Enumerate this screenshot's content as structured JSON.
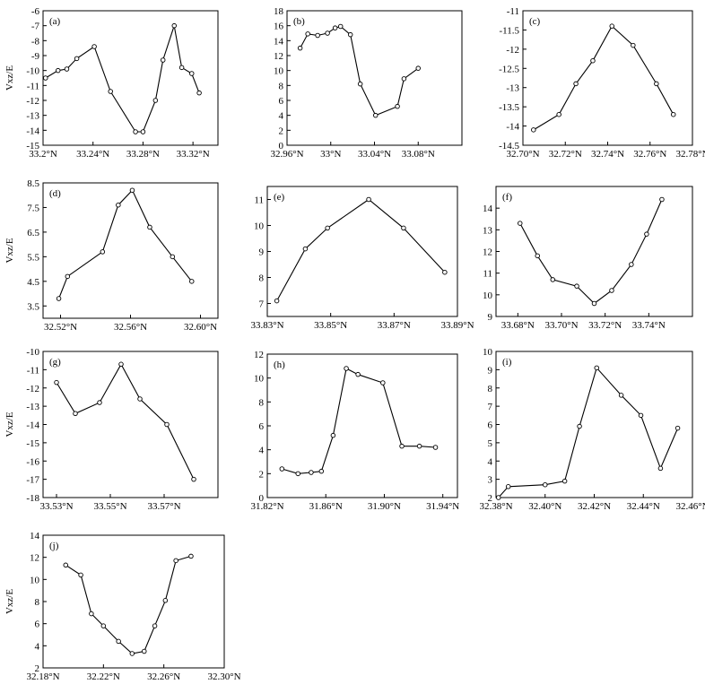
{
  "chart_data": [
    {
      "type": "line",
      "panel_label": "(a)",
      "ylabel": "Vxz/E",
      "xlim": [
        33.2,
        33.34
      ],
      "ylim": [
        -15,
        -6
      ],
      "xticks": [
        33.2,
        33.24,
        33.28,
        33.32
      ],
      "xtick_labels": [
        "33.2°N",
        "33.24°N",
        "33.28°N",
        "33.32°N"
      ],
      "yticks": [
        -15,
        -14,
        -13,
        -12,
        -11,
        -10,
        -9,
        -8,
        -7,
        -6
      ],
      "ytick_labels": [
        "-15",
        "-14",
        "-13",
        "-12",
        "-11",
        "-10",
        "-9",
        "-8",
        "-7",
        "-6"
      ],
      "x": [
        33.202,
        33.212,
        33.219,
        33.227,
        33.241,
        33.254,
        33.274,
        33.28,
        33.29,
        33.296,
        33.305,
        33.311,
        33.319,
        33.325
      ],
      "y": [
        -10.5,
        -10.0,
        -9.9,
        -9.2,
        -8.4,
        -11.4,
        -14.1,
        -14.1,
        -12.0,
        -9.3,
        -7.0,
        -9.8,
        -10.2,
        -11.5
      ]
    },
    {
      "type": "line",
      "panel_label": "(b)",
      "ylabel": "",
      "xlim": [
        32.96,
        33.12
      ],
      "ylim": [
        0,
        18
      ],
      "xticks": [
        32.96,
        33.0,
        33.04,
        33.08
      ],
      "xtick_labels": [
        "32.96°N",
        "33°N",
        "33.04°N",
        "33.08°N"
      ],
      "yticks": [
        0,
        2,
        4,
        6,
        8,
        10,
        12,
        14,
        16,
        18
      ],
      "ytick_labels": [
        "0",
        "2",
        "4",
        "6",
        "8",
        "10",
        "12",
        "14",
        "16",
        "18"
      ],
      "x": [
        32.972,
        32.979,
        32.988,
        32.997,
        33.004,
        33.009,
        33.018,
        33.027,
        33.041,
        33.061,
        33.067,
        33.08
      ],
      "y": [
        13.0,
        14.9,
        14.7,
        15.0,
        15.7,
        15.9,
        14.8,
        8.2,
        4.0,
        5.2,
        8.9,
        10.3
      ]
    },
    {
      "type": "line",
      "panel_label": "(c)",
      "ylabel": "",
      "xlim": [
        32.7,
        32.78
      ],
      "ylim": [
        -14.5,
        -11
      ],
      "xticks": [
        32.7,
        32.72,
        32.74,
        32.76,
        32.78
      ],
      "xtick_labels": [
        "32.70°N",
        "32.72°N",
        "32.74°N",
        "32.76°N",
        "32.78°N"
      ],
      "yticks": [
        -14.5,
        -14,
        -13.5,
        -13,
        -12.5,
        -12,
        -11.5,
        -11
      ],
      "ytick_labels": [
        "-14.5",
        "-14",
        "-13.5",
        "-13",
        "-12.5",
        "-12",
        "-11.5",
        "-11"
      ],
      "x": [
        32.705,
        32.717,
        32.725,
        32.733,
        32.742,
        32.752,
        32.763,
        32.771
      ],
      "y": [
        -14.1,
        -13.7,
        -12.9,
        -12.3,
        -11.4,
        -11.9,
        -12.9,
        -13.7
      ]
    },
    {
      "type": "line",
      "panel_label": "(d)",
      "ylabel": "Vxz/E",
      "xlim": [
        32.51,
        32.61
      ],
      "ylim": [
        3.0,
        8.5
      ],
      "xticks": [
        32.52,
        32.56,
        32.6
      ],
      "xtick_labels": [
        "32.52°N",
        "32.56°N",
        "32.60°N"
      ],
      "yticks": [
        3.5,
        4.5,
        5.5,
        6.5,
        7.5,
        8.5
      ],
      "ytick_labels": [
        "3.5",
        "4.5",
        "5.5",
        "6.5",
        "7.5",
        "8.5"
      ],
      "x": [
        32.519,
        32.524,
        32.544,
        32.553,
        32.561,
        32.571,
        32.584,
        32.595
      ],
      "y": [
        3.8,
        4.7,
        5.7,
        7.6,
        8.2,
        6.7,
        5.5,
        4.5
      ]
    },
    {
      "type": "line",
      "panel_label": "(e)",
      "ylabel": "",
      "xlim": [
        33.83,
        33.89
      ],
      "ylim": [
        6.5,
        11.5
      ],
      "xticks": [
        33.83,
        33.85,
        33.87,
        33.89
      ],
      "xtick_labels": [
        "33.83°N",
        "33.85°N",
        "33.87°N",
        "33.89°N"
      ],
      "yticks": [
        7,
        8,
        9,
        10,
        11
      ],
      "ytick_labels": [
        "7",
        "8",
        "9",
        "10",
        "11"
      ],
      "x": [
        33.833,
        33.842,
        33.849,
        33.862,
        33.873,
        33.886
      ],
      "y": [
        7.1,
        9.1,
        9.9,
        11.0,
        9.9,
        8.2
      ]
    },
    {
      "type": "line",
      "panel_label": "(f)",
      "ylabel": "",
      "xlim": [
        33.67,
        33.76
      ],
      "ylim": [
        9,
        15
      ],
      "xticks": [
        33.68,
        33.7,
        33.72,
        33.74
      ],
      "xtick_labels": [
        "33.68°N",
        "33.70°N",
        "33.72°N",
        "33.74°N"
      ],
      "yticks": [
        9,
        10,
        11,
        12,
        13,
        14
      ],
      "ytick_labels": [
        "9",
        "10",
        "11",
        "12",
        "13",
        "14"
      ],
      "x": [
        33.681,
        33.689,
        33.696,
        33.707,
        33.715,
        33.723,
        33.732,
        33.739,
        33.746
      ],
      "y": [
        13.3,
        11.8,
        10.7,
        10.4,
        9.6,
        10.2,
        11.4,
        12.8,
        14.4
      ]
    },
    {
      "type": "line",
      "panel_label": "(g)",
      "ylabel": "Vxz/E",
      "xlim": [
        33.525,
        33.59
      ],
      "ylim": [
        -18,
        -10
      ],
      "xticks": [
        33.53,
        33.55,
        33.57
      ],
      "xtick_labels": [
        "33.53°N",
        "33.55°N",
        "33.57°N"
      ],
      "yticks": [
        -18,
        -17,
        -16,
        -15,
        -14,
        -13,
        -12,
        -11,
        -10
      ],
      "ytick_labels": [
        "-18",
        "-17",
        "-16",
        "-15",
        "-14",
        "-13",
        "-12",
        "-11",
        "-10"
      ],
      "x": [
        33.53,
        33.537,
        33.546,
        33.554,
        33.561,
        33.571,
        33.581
      ],
      "y": [
        -11.7,
        -13.4,
        -12.8,
        -10.7,
        -12.6,
        -14.0,
        -17.0
      ]
    },
    {
      "type": "line",
      "panel_label": "(h)",
      "ylabel": "",
      "xlim": [
        31.82,
        31.95
      ],
      "ylim": [
        0,
        12
      ],
      "xticks": [
        31.82,
        31.86,
        31.9,
        31.94
      ],
      "xtick_labels": [
        "31.82°N",
        "31.86°N",
        "31.90°N",
        "31.94°N"
      ],
      "yticks": [
        0,
        2,
        4,
        6,
        8,
        10,
        12
      ],
      "ytick_labels": [
        "0",
        "2",
        "4",
        "6",
        "8",
        "10",
        "12"
      ],
      "x": [
        31.83,
        31.841,
        31.85,
        31.857,
        31.865,
        31.874,
        31.882,
        31.899,
        31.912,
        31.924,
        31.935
      ],
      "y": [
        2.4,
        2.0,
        2.1,
        2.2,
        5.2,
        10.8,
        10.3,
        9.6,
        4.3,
        4.3,
        4.2
      ]
    },
    {
      "type": "line",
      "panel_label": "(i)",
      "ylabel": "",
      "xlim": [
        32.38,
        32.46
      ],
      "ylim": [
        2,
        10
      ],
      "xticks": [
        32.38,
        32.4,
        32.42,
        32.44,
        32.46
      ],
      "xtick_labels": [
        "32.38°N",
        "32.40°N",
        "32.42°N",
        "32.44°N",
        "32.46°N"
      ],
      "yticks": [
        2,
        3,
        4,
        5,
        6,
        7,
        8,
        9,
        10
      ],
      "ytick_labels": [
        "2",
        "3",
        "4",
        "5",
        "6",
        "7",
        "8",
        "9",
        "10"
      ],
      "x": [
        32.381,
        32.385,
        32.4,
        32.408,
        32.414,
        32.421,
        32.431,
        32.439,
        32.447,
        32.454
      ],
      "y": [
        2.0,
        2.6,
        2.7,
        2.9,
        5.9,
        9.1,
        7.6,
        6.5,
        3.6,
        5.8
      ]
    },
    {
      "type": "line",
      "panel_label": "(j)",
      "ylabel": "Vxz/E",
      "xlim": [
        32.18,
        32.3
      ],
      "ylim": [
        2,
        14
      ],
      "xticks": [
        32.18,
        32.22,
        32.26,
        32.3
      ],
      "xtick_labels": [
        "32.18°N",
        "32.22°N",
        "32.26°N",
        "32.30°N"
      ],
      "yticks": [
        2,
        4,
        6,
        8,
        10,
        12,
        14
      ],
      "ytick_labels": [
        "2",
        "4",
        "6",
        "8",
        "10",
        "12",
        "14"
      ],
      "x": [
        32.195,
        32.205,
        32.212,
        32.22,
        32.23,
        32.239,
        32.247,
        32.254,
        32.261,
        32.268,
        32.278
      ],
      "y": [
        11.3,
        10.4,
        6.9,
        5.8,
        4.4,
        3.3,
        3.5,
        5.8,
        8.1,
        11.7,
        12.1
      ]
    }
  ]
}
